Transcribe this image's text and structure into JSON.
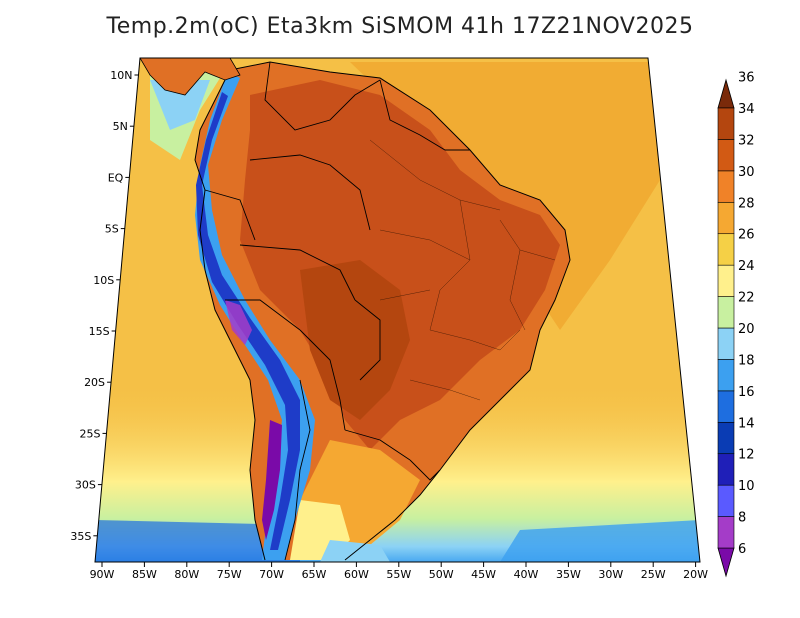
{
  "title": "Temp.2m(oC) Eta3km SiSMOM 41h 17Z21NOV2025",
  "lat_labels": [
    "10N",
    "5N",
    "EQ",
    "5S",
    "10S",
    "15S",
    "20S",
    "25S",
    "30S",
    "35S"
  ],
  "lon_labels": [
    "90W",
    "85W",
    "80W",
    "75W",
    "70W",
    "65W",
    "60W",
    "55W",
    "50W",
    "45W",
    "40W",
    "35W",
    "30W",
    "25W",
    "20W"
  ],
  "colorbar": {
    "labels": [
      "6",
      "8",
      "10",
      "12",
      "14",
      "16",
      "18",
      "20",
      "22",
      "24",
      "26",
      "28",
      "30",
      "32",
      "34",
      "36"
    ],
    "colors": [
      "#7a0aa8",
      "#a43cc8",
      "#5a5aff",
      "#1f1fb8",
      "#0a3cb4",
      "#1e6ee0",
      "#3ca0f0",
      "#8cd2f5",
      "#c8f0a0",
      "#fff08c",
      "#f5d046",
      "#f5a832",
      "#f08228",
      "#d25a14",
      "#b4460f",
      "#7a2a0a"
    ]
  },
  "palette": {
    "ocean": "#f5c046",
    "ocean_warm": "#f0a830",
    "land_hot": "#c8501a",
    "land_warm": "#e07025",
    "andes_cold": "#1e3cc8",
    "cool_coast": "#8cd2f5"
  }
}
